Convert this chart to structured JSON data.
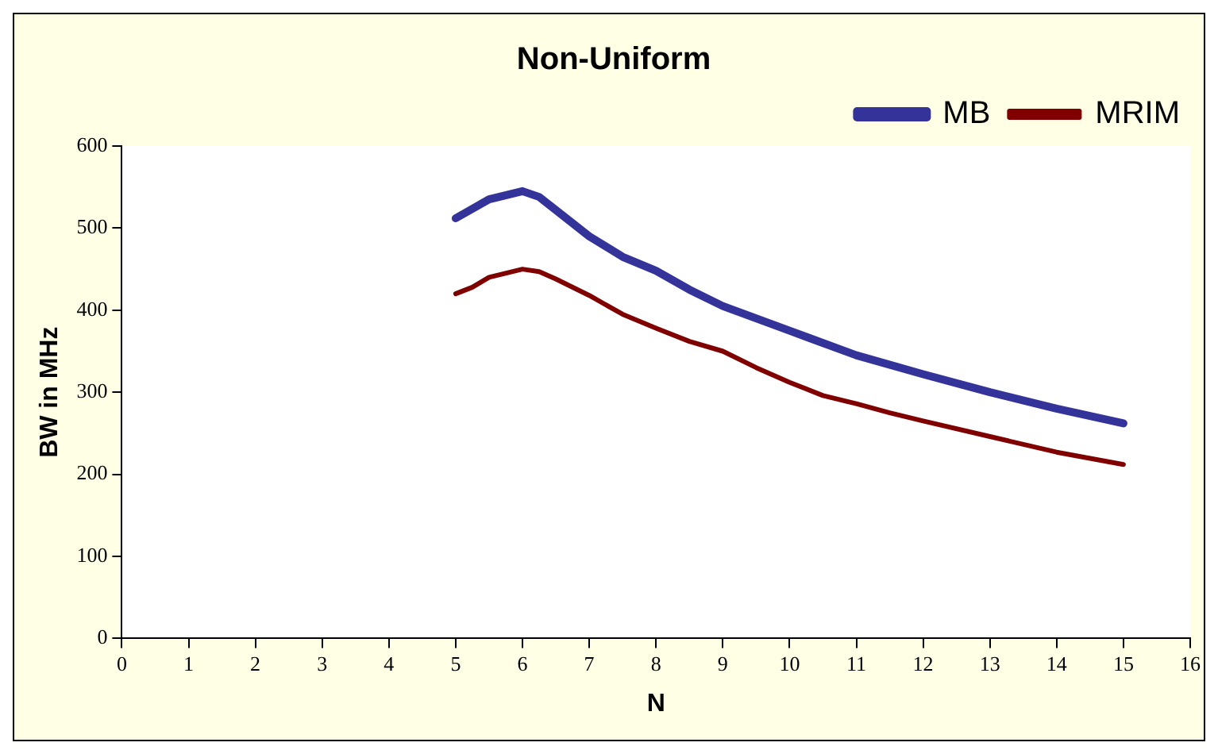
{
  "chart_data": {
    "type": "line",
    "title": "Non-Uniform",
    "xlabel": "N",
    "ylabel": "BW in MHz",
    "xlim": [
      0,
      16
    ],
    "xticks": [
      0,
      1,
      2,
      3,
      4,
      5,
      6,
      7,
      8,
      9,
      10,
      11,
      12,
      13,
      14,
      15,
      16
    ],
    "ylim": [
      0,
      600
    ],
    "yticks": [
      0,
      100,
      200,
      300,
      400,
      500,
      600
    ],
    "grid": false,
    "legend": "top right",
    "marker": "none",
    "line_style": "solid",
    "series": [
      {
        "name": "MB",
        "color": "#333399",
        "x": [
          5,
          5.5,
          6,
          6.25,
          7,
          7.5,
          8,
          8.5,
          9,
          10,
          11,
          12,
          13,
          14,
          15
        ],
        "values": [
          512,
          535,
          545,
          538,
          490,
          465,
          448,
          425,
          405,
          375,
          345,
          322,
          300,
          280,
          262
        ]
      },
      {
        "name": "MRIM",
        "color": "#800000",
        "x": [
          5,
          5.25,
          5.5,
          6,
          6.25,
          6.5,
          7,
          7.5,
          8,
          8.5,
          9,
          9.5,
          10,
          10.5,
          11,
          11.5,
          12,
          13,
          14,
          15
        ],
        "values": [
          420,
          428,
          440,
          450,
          447,
          438,
          418,
          395,
          378,
          362,
          350,
          330,
          312,
          296,
          286,
          275,
          265,
          246,
          227,
          212
        ]
      }
    ]
  }
}
